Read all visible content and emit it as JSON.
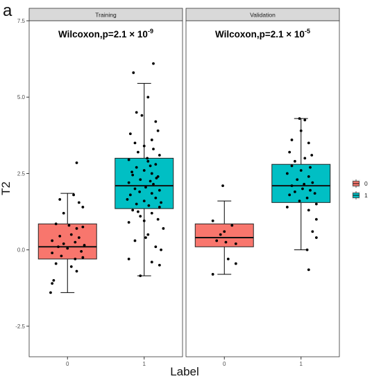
{
  "figure": {
    "panel_letter": "a"
  },
  "chart_data": {
    "type": "boxplot",
    "ylabel": "T2",
    "xlabel": "Label",
    "ylim": [
      -3.5,
      7.5
    ],
    "y_ticks": [
      -2.5,
      0.0,
      2.5,
      5.0,
      7.5
    ],
    "y_tick_labels": [
      "-2.5",
      "0.0",
      "2.5",
      "5.0",
      "7.5"
    ],
    "categories": [
      "0",
      "1"
    ],
    "legend": {
      "placement": "right",
      "entries": [
        {
          "label": "0",
          "color": "#F8766D"
        },
        {
          "label": "1",
          "color": "#00BFC4"
        }
      ]
    },
    "grid": false,
    "facets": [
      {
        "name": "Training",
        "annotation": {
          "prefix": "Wilcoxon,p=2.1 × 10",
          "exp": "-9"
        },
        "boxes": [
          {
            "label": "0",
            "color": "#F8766D",
            "q1": -0.3,
            "median": 0.1,
            "q3": 0.85,
            "whisker_low": -1.4,
            "whisker_high": 1.85,
            "points": [
              [
                -0.15,
                0.85
              ],
              [
                0.02,
                0.8
              ],
              [
                0.12,
                0.7
              ],
              [
                0.2,
                0.75
              ],
              [
                -0.1,
                0.45
              ],
              [
                0.05,
                0.5
              ],
              [
                0.15,
                0.4
              ],
              [
                -0.2,
                0.3
              ],
              [
                -0.05,
                0.2
              ],
              [
                0.1,
                0.25
              ],
              [
                0.22,
                0.15
              ],
              [
                -0.12,
                0.1
              ],
              [
                0.0,
                0.05
              ],
              [
                0.18,
                -0.05
              ],
              [
                -0.2,
                -0.1
              ],
              [
                -0.08,
                -0.2
              ],
              [
                0.1,
                -0.3
              ],
              [
                0.2,
                -0.25
              ],
              [
                -0.15,
                -0.45
              ],
              [
                0.05,
                -0.55
              ],
              [
                0.12,
                -0.7
              ],
              [
                -0.18,
                -1.0
              ],
              [
                -0.2,
                -1.1
              ],
              [
                -0.22,
                -1.4
              ],
              [
                0.08,
                1.8
              ],
              [
                0.15,
                1.55
              ],
              [
                -0.05,
                1.2
              ],
              [
                0.2,
                1.4
              ],
              [
                -0.1,
                1.65
              ],
              [
                0.12,
                2.85
              ]
            ]
          },
          {
            "label": "1",
            "color": "#00BFC4",
            "q1": 1.35,
            "median": 2.1,
            "q3": 3.0,
            "whisker_low": -0.85,
            "whisker_high": 5.45,
            "points": [
              [
                -0.14,
                5.8
              ],
              [
                0.12,
                6.1
              ],
              [
                0.05,
                5.0
              ],
              [
                -0.1,
                4.5
              ],
              [
                0.15,
                4.2
              ],
              [
                -0.18,
                3.8
              ],
              [
                0.1,
                3.6
              ],
              [
                0.0,
                3.4
              ],
              [
                -0.08,
                3.2
              ],
              [
                0.2,
                3.1
              ],
              [
                -0.2,
                2.95
              ],
              [
                0.05,
                2.9
              ],
              [
                0.15,
                2.8
              ],
              [
                -0.1,
                2.7
              ],
              [
                0.0,
                2.6
              ],
              [
                0.1,
                2.5
              ],
              [
                -0.15,
                2.45
              ],
              [
                0.18,
                2.4
              ],
              [
                -0.05,
                2.3
              ],
              [
                0.08,
                2.25
              ],
              [
                -0.2,
                2.2
              ],
              [
                0.12,
                2.15
              ],
              [
                0.02,
                2.05
              ],
              [
                -0.12,
                2.0
              ],
              [
                0.2,
                1.95
              ],
              [
                -0.06,
                1.9
              ],
              [
                0.1,
                1.85
              ],
              [
                -0.18,
                1.8
              ],
              [
                0.15,
                1.7
              ],
              [
                0.0,
                1.6
              ],
              [
                -0.1,
                1.5
              ],
              [
                0.06,
                1.45
              ],
              [
                0.2,
                1.4
              ],
              [
                -0.15,
                1.3
              ],
              [
                0.1,
                1.2
              ],
              [
                -0.05,
                1.1
              ],
              [
                0.18,
                1.0
              ],
              [
                -0.2,
                0.9
              ],
              [
                0.25,
                0.7
              ],
              [
                0.05,
                0.5
              ],
              [
                -0.12,
                0.3
              ],
              [
                0.15,
                0.1
              ],
              [
                -0.2,
                -0.3
              ],
              [
                0.1,
                -0.4
              ],
              [
                0.2,
                -0.5
              ],
              [
                -0.05,
                -0.85
              ],
              [
                0.22,
                0.0
              ],
              [
                0.02,
                0.4
              ],
              [
                -0.08,
                1.25
              ],
              [
                0.12,
                3.3
              ],
              [
                0.18,
                3.9
              ],
              [
                -0.03,
                4.4
              ],
              [
                0.08,
                2.75
              ],
              [
                -0.16,
                2.55
              ],
              [
                0.16,
                2.35
              ],
              [
                -0.22,
                1.65
              ],
              [
                0.04,
                3.0
              ],
              [
                -0.12,
                3.5
              ],
              [
                0.22,
                1.55
              ],
              [
                0.0,
                0.95
              ]
            ]
          }
        ]
      },
      {
        "name": "Validation",
        "annotation": {
          "prefix": "Wilcoxon,p=2.1 × 10",
          "exp": "-5"
        },
        "boxes": [
          {
            "label": "0",
            "color": "#F8766D",
            "q1": 0.1,
            "median": 0.4,
            "q3": 0.85,
            "whisker_low": -0.8,
            "whisker_high": 1.6,
            "points": [
              [
                -0.02,
                2.1
              ],
              [
                -0.15,
                0.95
              ],
              [
                0.1,
                0.8
              ],
              [
                0.0,
                0.6
              ],
              [
                -0.05,
                0.5
              ],
              [
                -0.1,
                0.3
              ],
              [
                0.02,
                0.25
              ],
              [
                0.15,
                0.2
              ],
              [
                0.05,
                -0.3
              ],
              [
                0.15,
                -0.45
              ],
              [
                -0.15,
                -0.8
              ]
            ]
          },
          {
            "label": "1",
            "color": "#00BFC4",
            "q1": 1.55,
            "median": 2.1,
            "q3": 2.8,
            "whisker_low": 0.0,
            "whisker_high": 4.3,
            "points": [
              [
                -0.02,
                4.3
              ],
              [
                0.05,
                4.25
              ],
              [
                0.0,
                3.9
              ],
              [
                -0.12,
                3.6
              ],
              [
                0.1,
                3.5
              ],
              [
                -0.15,
                3.2
              ],
              [
                0.05,
                3.0
              ],
              [
                -0.08,
                2.9
              ],
              [
                0.12,
                2.7
              ],
              [
                0.0,
                2.6
              ],
              [
                -0.18,
                2.5
              ],
              [
                0.1,
                2.4
              ],
              [
                -0.05,
                2.3
              ],
              [
                0.15,
                2.2
              ],
              [
                -0.12,
                2.1
              ],
              [
                0.02,
                2.0
              ],
              [
                0.12,
                1.95
              ],
              [
                -0.08,
                1.9
              ],
              [
                0.18,
                1.85
              ],
              [
                -0.15,
                1.8
              ],
              [
                0.08,
                1.7
              ],
              [
                -0.02,
                1.6
              ],
              [
                0.2,
                1.5
              ],
              [
                -0.18,
                1.4
              ],
              [
                0.1,
                1.3
              ],
              [
                0.2,
                1.0
              ],
              [
                0.15,
                0.6
              ],
              [
                0.2,
                0.4
              ],
              [
                0.08,
                0.0
              ],
              [
                0.1,
                -0.65
              ],
              [
                -0.12,
                2.75
              ],
              [
                0.04,
                2.15
              ],
              [
                0.14,
                3.1
              ]
            ]
          }
        ]
      }
    ]
  }
}
